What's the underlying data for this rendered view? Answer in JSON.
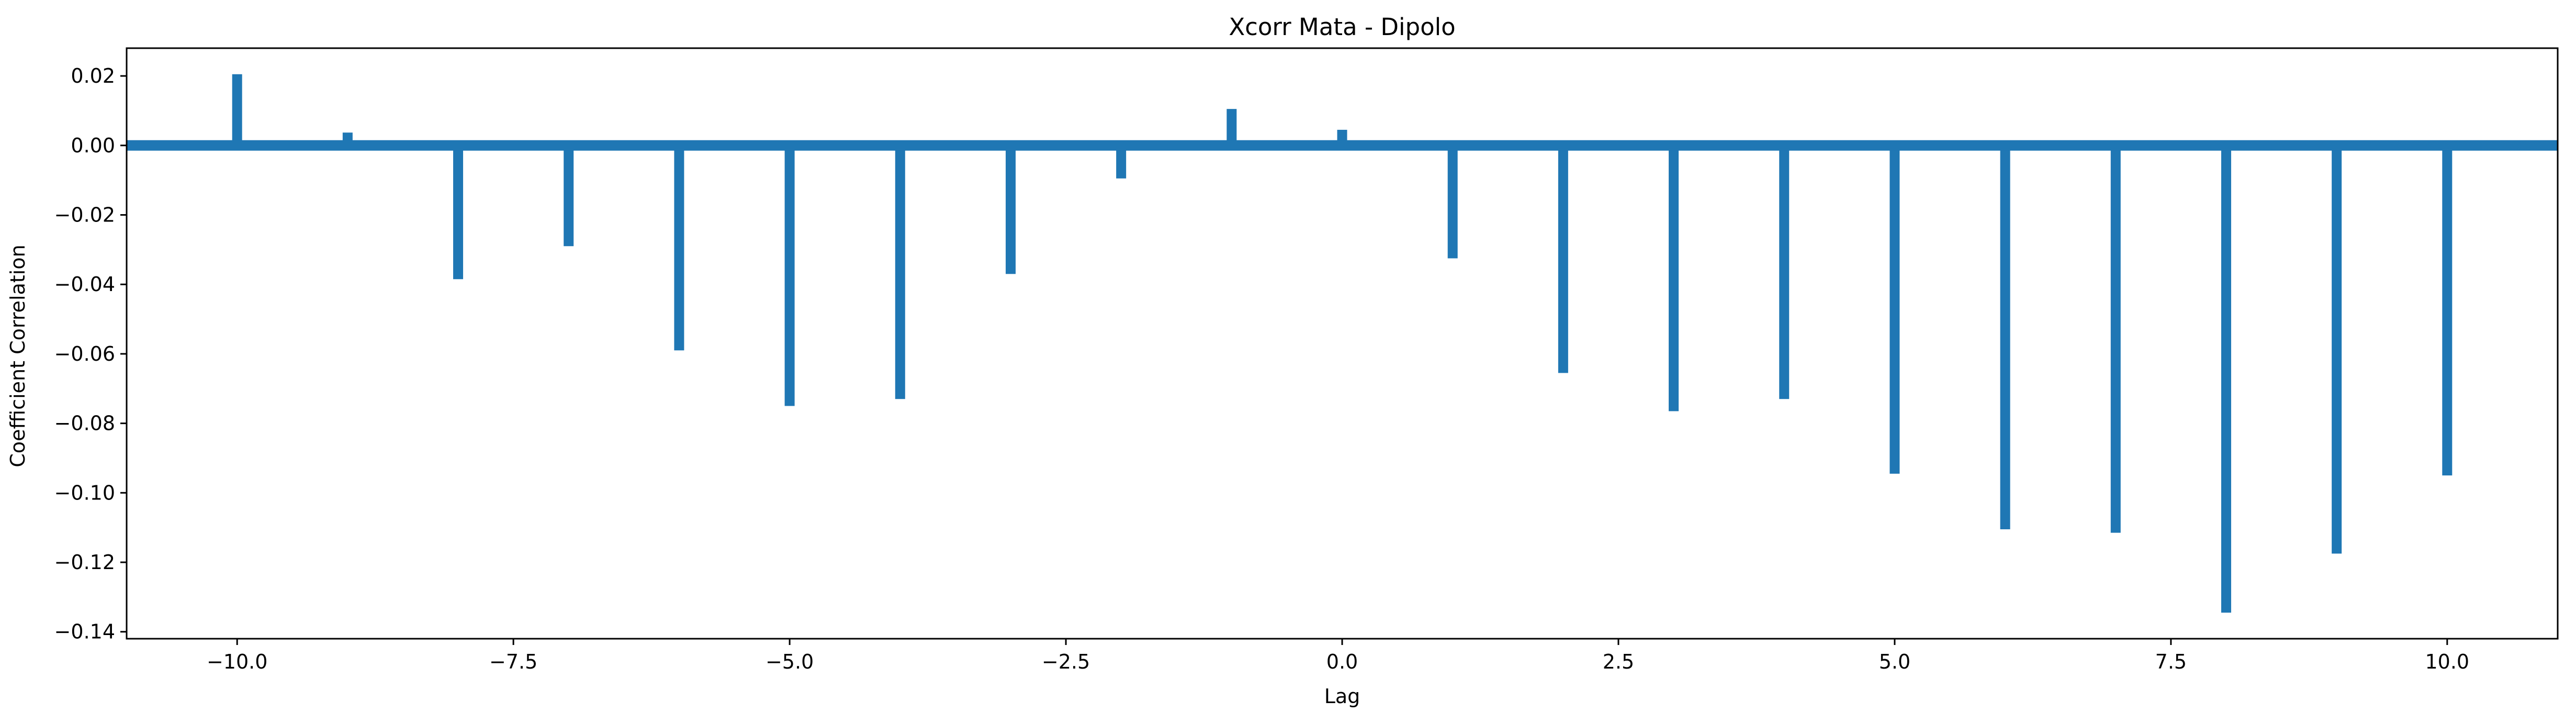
{
  "chart_data": {
    "type": "bar",
    "title": "Xcorr Mata - Dipolo",
    "xlabel": "Lag",
    "ylabel": "Coefficient Correlation",
    "xlim": [
      -11,
      11
    ],
    "ylim": [
      -0.142,
      0.028
    ],
    "xticks": [
      -10.0,
      -7.5,
      -5.0,
      -2.5,
      0.0,
      2.5,
      5.0,
      7.5,
      10.0
    ],
    "xtick_labels": [
      "−10.0",
      "−7.5",
      "−5.0",
      "−2.5",
      "0.0",
      "2.5",
      "5.0",
      "7.5",
      "10.0"
    ],
    "yticks": [
      0.02,
      0.0,
      -0.02,
      -0.04,
      -0.06,
      -0.08,
      -0.1,
      -0.12,
      -0.14
    ],
    "ytick_labels": [
      "0.02",
      "0.00",
      "−0.02",
      "−0.04",
      "−0.06",
      "−0.08",
      "−0.10",
      "−0.12",
      "−0.14"
    ],
    "grid": false,
    "color": "#1f77b4",
    "baseline": 0.0,
    "series": [
      {
        "x": [
          -10,
          -9,
          -8,
          -7,
          -6,
          -5,
          -4,
          -3,
          -2,
          -1,
          0,
          1,
          2,
          3,
          4,
          5,
          6,
          7,
          8,
          9,
          10
        ],
        "values": [
          0.0205,
          0.0037,
          -0.0385,
          -0.029,
          -0.059,
          -0.075,
          -0.073,
          -0.037,
          -0.0095,
          0.0105,
          0.0045,
          -0.0325,
          -0.0655,
          -0.0765,
          -0.073,
          -0.0945,
          -0.1105,
          -0.1115,
          -0.1345,
          -0.1175,
          -0.095
        ]
      }
    ]
  }
}
